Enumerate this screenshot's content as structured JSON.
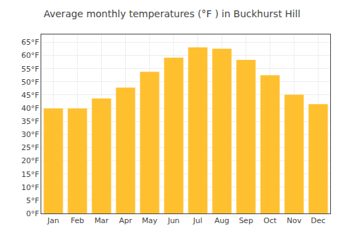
{
  "chart_data": {
    "type": "bar",
    "title": "Average monthly temperatures (°F ) in Buckhurst Hill",
    "categories": [
      "Jan",
      "Feb",
      "Mar",
      "Apr",
      "May",
      "Jun",
      "Jul",
      "Aug",
      "Sep",
      "Oct",
      "Nov",
      "Dec"
    ],
    "values": [
      39.9,
      39.9,
      43.7,
      47.8,
      53.8,
      59.2,
      63.1,
      62.6,
      58.3,
      52.5,
      45.1,
      41.5
    ],
    "color": "#FFC030",
    "ylim": [
      0,
      68
    ],
    "yticks": [
      {
        "value": 0,
        "label": "0°F"
      },
      {
        "value": 5,
        "label": "5°F"
      },
      {
        "value": 10,
        "label": "10°F"
      },
      {
        "value": 15,
        "label": "15°F"
      },
      {
        "value": 20,
        "label": "20°F"
      },
      {
        "value": 25,
        "label": "25°F"
      },
      {
        "value": 30,
        "label": "30°F"
      },
      {
        "value": 35,
        "label": "35°F"
      },
      {
        "value": 40,
        "label": "40°F"
      },
      {
        "value": 45,
        "label": "45°F"
      },
      {
        "value": 50,
        "label": "50°F"
      },
      {
        "value": 55,
        "label": "55°F"
      },
      {
        "value": 60,
        "label": "60°F"
      },
      {
        "value": 65,
        "label": "65°F"
      }
    ],
    "grid": true
  }
}
